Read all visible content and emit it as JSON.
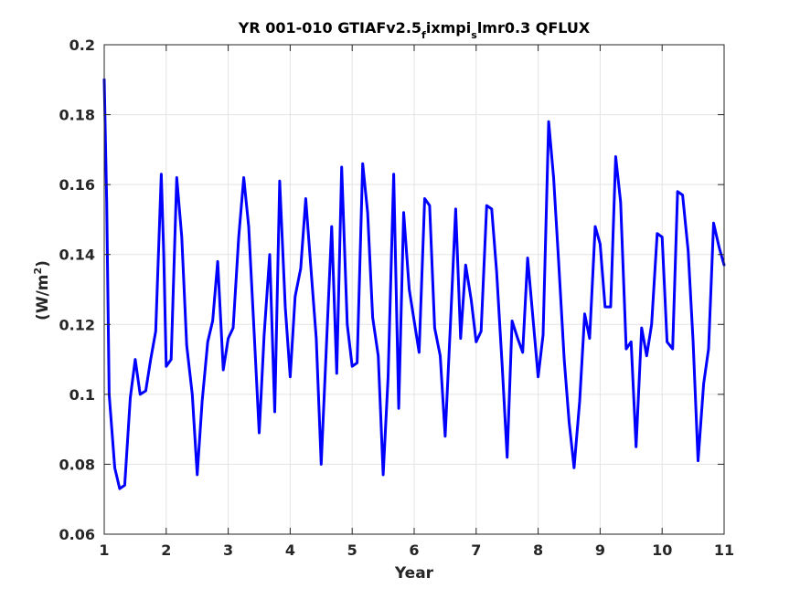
{
  "chart_data": {
    "type": "line",
    "title": {
      "prefix": "YR 001-010 GTIAFv2.5",
      "sub1": "f",
      "middle": "ixmpi",
      "sub2": "s",
      "suffix": "lmr0.3 QFLUX"
    },
    "xlabel": "Year",
    "ylabel": {
      "base": "(W/m",
      "sup": "2",
      "close": ")"
    },
    "xlim": [
      1,
      11
    ],
    "ylim": [
      0.06,
      0.2
    ],
    "xticks": [
      1,
      2,
      3,
      4,
      5,
      6,
      7,
      8,
      9,
      10,
      11
    ],
    "xtick_labels": [
      "1",
      "2",
      "3",
      "4",
      "5",
      "6",
      "7",
      "8",
      "9",
      "10",
      "11"
    ],
    "yticks": [
      0.06,
      0.08,
      0.1,
      0.12,
      0.14,
      0.16,
      0.18,
      0.2
    ],
    "ytick_labels": [
      "0.06",
      "0.08",
      "0.1",
      "0.12",
      "0.14",
      "0.16",
      "0.18",
      "0.2"
    ],
    "grid": true,
    "series": [
      {
        "color": "#0000ff",
        "x": [
          1.0,
          1.04,
          1.08,
          1.17,
          1.25,
          1.33,
          1.42,
          1.5,
          1.58,
          1.67,
          1.75,
          1.83,
          1.92,
          1.96,
          2.0,
          2.08,
          2.17,
          2.25,
          2.33,
          2.42,
          2.5,
          2.58,
          2.67,
          2.75,
          2.83,
          2.92,
          3.0,
          3.08,
          3.17,
          3.25,
          3.33,
          3.42,
          3.5,
          3.58,
          3.67,
          3.75,
          3.83,
          3.92,
          4.0,
          4.08,
          4.17,
          4.25,
          4.33,
          4.42,
          4.5,
          4.58,
          4.67,
          4.75,
          4.83,
          4.92,
          5.0,
          5.08,
          5.17,
          5.25,
          5.33,
          5.42,
          5.5,
          5.58,
          5.67,
          5.75,
          5.83,
          5.92,
          6.0,
          6.08,
          6.17,
          6.25,
          6.33,
          6.42,
          6.5,
          6.58,
          6.67,
          6.75,
          6.83,
          6.92,
          7.0,
          7.08,
          7.17,
          7.25,
          7.33,
          7.42,
          7.5,
          7.58,
          7.67,
          7.75,
          7.83,
          7.92,
          8.0,
          8.08,
          8.17,
          8.25,
          8.33,
          8.42,
          8.5,
          8.58,
          8.67,
          8.75,
          8.83,
          8.92,
          9.0,
          9.08,
          9.17,
          9.25,
          9.33,
          9.42,
          9.5,
          9.58,
          9.67,
          9.75,
          9.83,
          9.92,
          10.0,
          10.08,
          10.17,
          10.25,
          10.33,
          10.42,
          10.5,
          10.58,
          10.67,
          10.75,
          10.83,
          10.92,
          11.0
        ],
        "y": [
          0.19,
          0.155,
          0.1,
          0.079,
          0.073,
          0.074,
          0.099,
          0.11,
          0.1,
          0.101,
          0.11,
          0.118,
          0.163,
          0.14,
          0.108,
          0.11,
          0.162,
          0.145,
          0.114,
          0.1,
          0.077,
          0.098,
          0.115,
          0.121,
          0.138,
          0.107,
          0.116,
          0.119,
          0.145,
          0.162,
          0.148,
          0.117,
          0.089,
          0.117,
          0.14,
          0.095,
          0.161,
          0.125,
          0.105,
          0.128,
          0.136,
          0.156,
          0.137,
          0.116,
          0.08,
          0.112,
          0.148,
          0.106,
          0.165,
          0.12,
          0.108,
          0.109,
          0.166,
          0.152,
          0.122,
          0.111,
          0.077,
          0.105,
          0.163,
          0.096,
          0.152,
          0.13,
          0.121,
          0.112,
          0.156,
          0.154,
          0.119,
          0.111,
          0.088,
          0.118,
          0.153,
          0.116,
          0.137,
          0.127,
          0.115,
          0.118,
          0.154,
          0.153,
          0.135,
          0.108,
          0.082,
          0.121,
          0.116,
          0.112,
          0.139,
          0.121,
          0.105,
          0.117,
          0.178,
          0.162,
          0.138,
          0.11,
          0.092,
          0.079,
          0.098,
          0.123,
          0.116,
          0.148,
          0.143,
          0.125,
          0.125,
          0.168,
          0.155,
          0.113,
          0.115,
          0.085,
          0.119,
          0.111,
          0.12,
          0.146,
          0.145,
          0.115,
          0.113,
          0.158,
          0.157,
          0.141,
          0.115,
          0.081,
          0.103,
          0.113,
          0.149,
          0.142,
          0.137
        ]
      }
    ]
  }
}
